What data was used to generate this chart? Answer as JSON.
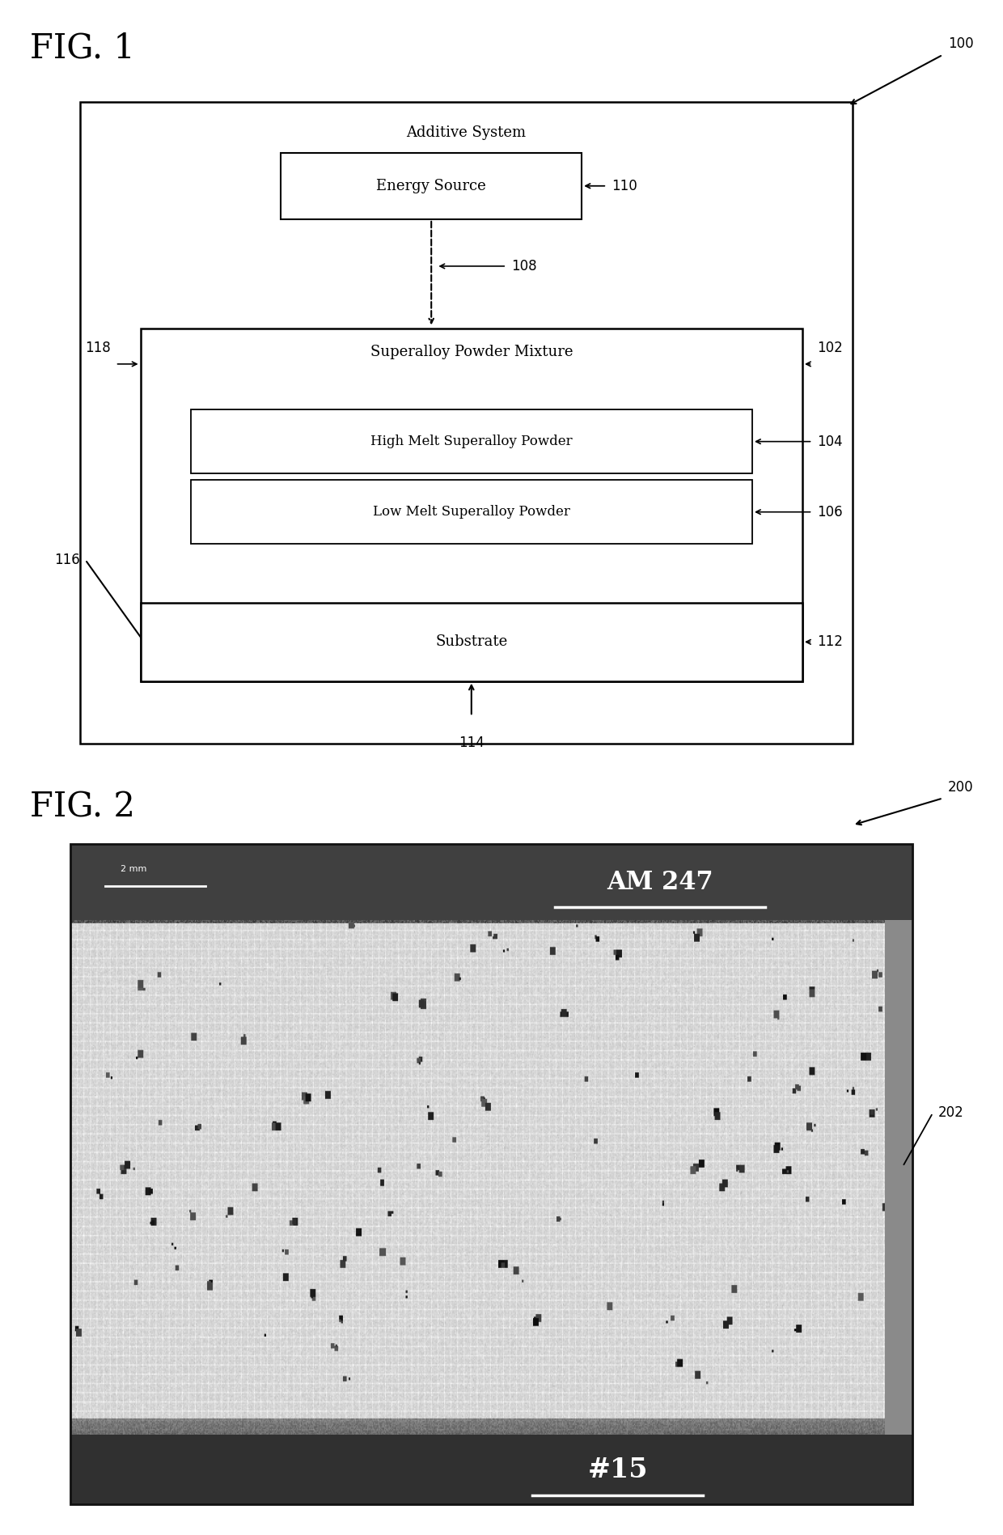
{
  "fig1_title": "FIG. 1",
  "fig2_title": "FIG. 2",
  "bg_color": "#ffffff",
  "fig1": {
    "outer_box_label": "Additive System",
    "energy_source_label": "Energy Source",
    "energy_source_num": "110",
    "arrow_num": "108",
    "powder_mixture_label": "Superalloy Powder Mixture",
    "powder_mixture_num": "102",
    "high_melt_label": "High Melt Superalloy Powder",
    "high_melt_num": "104",
    "low_melt_label": "Low Melt Superalloy Powder",
    "low_melt_num": "106",
    "substrate_label": "Substrate",
    "substrate_num": "112",
    "outer_num": "100",
    "num_116": "116",
    "num_118": "118",
    "num_114": "114"
  },
  "fig2": {
    "label_am247": "AM 247",
    "label_15": "#15",
    "label_2mm": "2 mm",
    "num_200": "200",
    "num_202": "202",
    "top_bar_color": "#404040",
    "bottom_bar_color": "#303030",
    "main_area_light": 0.85,
    "border_color": "#111111"
  }
}
